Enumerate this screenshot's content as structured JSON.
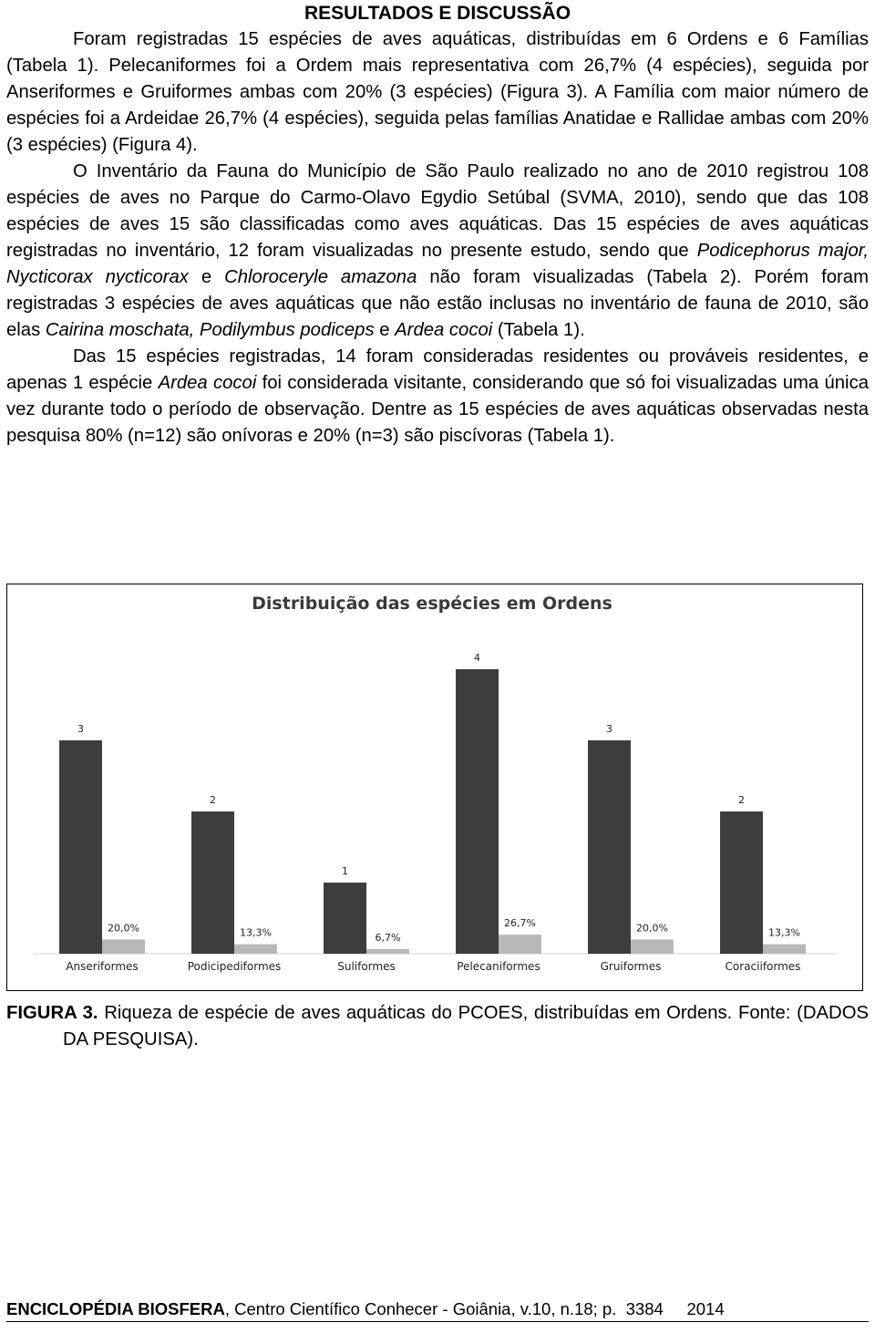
{
  "heading": "RESULTADOS E DISCUSSÃO",
  "paragraphs": [
    [
      {
        "text": "Foram registradas 15 espécies de aves aquáticas, distribuídas em 6 Ordens e 6 Famílias (Tabela 1). Pelecaniformes foi a Ordem mais representativa com 26,7% (4 espécies), seguida por Anseriformes e Gruiformes ambas com 20% (3 espécies) (Figura 3). A Família com maior número de espécies foi a Ardeidae 26,7% (4 espécies), seguida pelas famílias Anatidae e Rallidae ambas com 20% (3 espécies) (Figura 4)."
      }
    ],
    [
      {
        "text": "O Inventário da Fauna do Município de São Paulo realizado no ano de 2010 registrou 108 espécies de aves no Parque do Carmo-Olavo Egydio Setúbal (SVMA, 2010), sendo que das 108 espécies de aves 15 são classificadas como aves aquáticas. Das 15 espécies de aves aquáticas registradas no inventário, 12 foram visualizadas no presente estudo, sendo que "
      },
      {
        "text": "Podicephorus major, Nycticorax nycticorax",
        "italic": true
      },
      {
        "text": " e "
      },
      {
        "text": "Chloroceryle amazona",
        "italic": true
      },
      {
        "text": " não foram visualizadas (Tabela 2). Porém foram registradas 3 espécies de aves aquáticas que não estão inclusas no inventário de fauna de 2010, são elas "
      },
      {
        "text": "Cairina moschata, Podilymbus podiceps",
        "italic": true
      },
      {
        "text": " e "
      },
      {
        "text": "Ardea cocoi",
        "italic": true
      },
      {
        "text": " (Tabela 1)."
      }
    ],
    [
      {
        "text": "Das 15 espécies registradas, 14 foram consideradas residentes ou prováveis residentes, e apenas 1 espécie "
      },
      {
        "text": "Ardea cocoi",
        "italic": true
      },
      {
        "text": " foi considerada visitante, considerando que só foi visualizadas uma única vez durante todo o período de observação. Dentre as 15 espécies de aves aquáticas observadas nesta pesquisa 80% (n=12) são onívoras e 20% (n=3) são piscívoras (Tabela 1)."
      }
    ]
  ],
  "chart_data": {
    "type": "bar",
    "title": "Distribuição das espécies em Ordens",
    "categories": [
      "Anseriformes",
      "Podicipediformes",
      "Suliformes",
      "Pelecaniformes",
      "Gruiformes",
      "Coraciiformes"
    ],
    "series": [
      {
        "color": "#3d3d3d",
        "values": [
          3,
          2,
          1,
          4,
          3,
          2
        ]
      },
      {
        "color": "#b8b8b8",
        "values": [
          20.0,
          13.3,
          6.7,
          26.7,
          20.0,
          13.3
        ],
        "value_labels": [
          "20,0%",
          "13,3%",
          "6,7%",
          "26,7%",
          "20,0%",
          "13,3%"
        ]
      }
    ]
  },
  "caption": {
    "label": "FIGURA 3.",
    "text": "Riqueza de espécie de aves aquáticas do PCOES, distribuídas em Ordens. Fonte: (DADOS DA PESQUISA)."
  },
  "footer": {
    "journal": "ENCICLOPÉDIA BIOSFERA",
    "details": ", Centro Científico Conhecer - Goiânia, v.10, n.18; p.",
    "page": "3384",
    "year": "2014"
  }
}
